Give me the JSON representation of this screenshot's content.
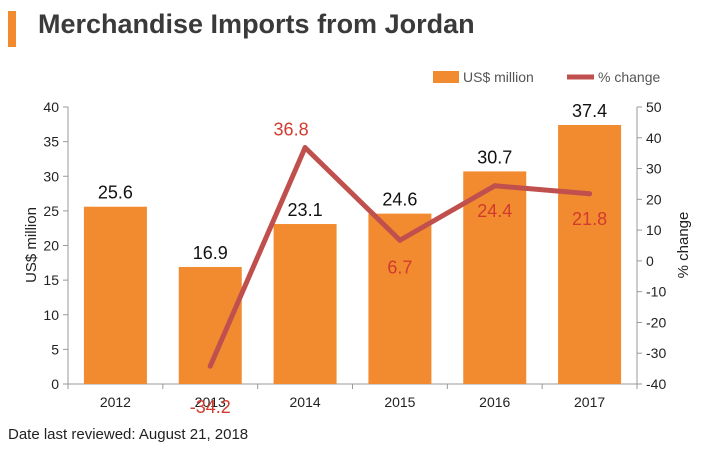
{
  "title": "Merchandise Imports from Jordan",
  "footer": "Date last reviewed: August 21, 2018",
  "colors": {
    "bar": "#f28a30",
    "line": "#c0504d",
    "line_label": "#d13a2f",
    "title_accent": "#f28a30"
  },
  "chart_data": {
    "type": "bar",
    "categories": [
      "2012",
      "2013",
      "2014",
      "2015",
      "2016",
      "2017"
    ],
    "series": [
      {
        "name": "US$ million",
        "type": "bar",
        "axis": "left",
        "values": [
          25.6,
          16.9,
          23.1,
          24.6,
          30.7,
          37.4
        ],
        "labels": [
          "25.6",
          "16.9",
          "23.1",
          "24.6",
          "30.7",
          "37.4"
        ]
      },
      {
        "name": "% change",
        "type": "line",
        "axis": "right",
        "values": [
          null,
          -34.2,
          36.8,
          6.7,
          24.4,
          21.8
        ],
        "labels": [
          "",
          "-34.2",
          "36.8",
          "6.7",
          "24.4",
          "21.8"
        ]
      }
    ],
    "ylabel": "US$ million",
    "y2label": "% change",
    "ylim": [
      0,
      40
    ],
    "y2lim": [
      -40,
      50
    ],
    "yticks": [
      "0",
      "5",
      "10",
      "15",
      "20",
      "25",
      "30",
      "35",
      "40"
    ],
    "y2ticks": [
      "-40",
      "-30",
      "-20",
      "-10",
      "0",
      "10",
      "20",
      "30",
      "40",
      "50"
    ],
    "legend_position": "top-right",
    "grid": false
  }
}
